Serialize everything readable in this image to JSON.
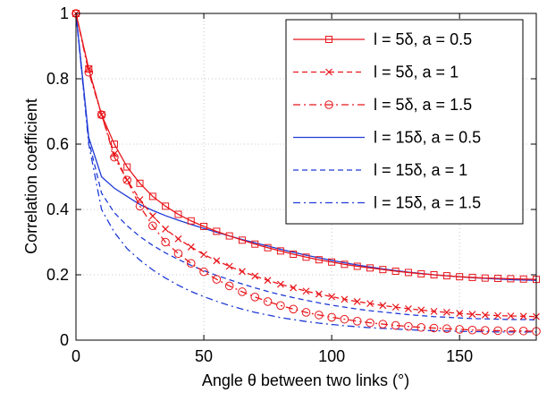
{
  "chart_data": {
    "type": "line",
    "xlabel": "Angle θ between two links (°)",
    "ylabel": "Correlation coefficient",
    "xlim": [
      0,
      180
    ],
    "ylim": [
      0,
      1
    ],
    "xticks": [
      "0",
      "50",
      "100",
      "150"
    ],
    "yticks": [
      "0",
      "0.2",
      "0.4",
      "0.6",
      "0.8",
      "1"
    ],
    "grid": true,
    "legend_position": "top-right",
    "colors": {
      "red": "#e8161b",
      "blue": "#1f3bd6",
      "grid": "#c8c8c8"
    },
    "x": [
      0,
      5,
      10,
      15,
      20,
      25,
      30,
      35,
      40,
      45,
      50,
      55,
      60,
      65,
      70,
      75,
      80,
      85,
      90,
      95,
      100,
      105,
      110,
      115,
      120,
      125,
      130,
      135,
      140,
      145,
      150,
      155,
      160,
      165,
      170,
      175,
      180
    ],
    "series": [
      {
        "name": "l = 5δ, a = 0.5",
        "color": "red",
        "dash": "solid",
        "marker": "square",
        "values": [
          1.0,
          0.83,
          0.69,
          0.6,
          0.53,
          0.48,
          0.44,
          0.41,
          0.385,
          0.365,
          0.348,
          0.333,
          0.319,
          0.306,
          0.294,
          0.283,
          0.273,
          0.263,
          0.254,
          0.246,
          0.239,
          0.232,
          0.226,
          0.221,
          0.216,
          0.211,
          0.207,
          0.203,
          0.2,
          0.197,
          0.194,
          0.192,
          0.19,
          0.189,
          0.188,
          0.187,
          0.186
        ]
      },
      {
        "name": "l = 5δ, a = 1",
        "color": "red",
        "dash": "dashed",
        "marker": "x",
        "values": [
          1.0,
          0.83,
          0.69,
          0.57,
          0.49,
          0.43,
          0.38,
          0.34,
          0.31,
          0.285,
          0.262,
          0.243,
          0.226,
          0.21,
          0.196,
          0.183,
          0.171,
          0.16,
          0.15,
          0.141,
          0.133,
          0.125,
          0.118,
          0.112,
          0.106,
          0.101,
          0.096,
          0.092,
          0.088,
          0.085,
          0.082,
          0.079,
          0.077,
          0.075,
          0.074,
          0.073,
          0.072
        ]
      },
      {
        "name": "l = 5δ, a = 1.5",
        "color": "red",
        "dash": "dashdot",
        "marker": "circle",
        "values": [
          1.0,
          0.82,
          0.69,
          0.56,
          0.49,
          0.41,
          0.35,
          0.3,
          0.265,
          0.235,
          0.209,
          0.186,
          0.166,
          0.148,
          0.132,
          0.118,
          0.106,
          0.095,
          0.085,
          0.077,
          0.07,
          0.064,
          0.058,
          0.053,
          0.049,
          0.045,
          0.042,
          0.039,
          0.037,
          0.035,
          0.033,
          0.031,
          0.03,
          0.029,
          0.028,
          0.028,
          0.027
        ]
      },
      {
        "name": "l = 15δ, a = 0.5",
        "color": "blue",
        "dash": "solid",
        "marker": "none",
        "values": [
          1.0,
          0.62,
          0.5,
          0.465,
          0.44,
          0.415,
          0.397,
          0.381,
          0.367,
          0.354,
          0.342,
          0.33,
          0.319,
          0.308,
          0.298,
          0.288,
          0.278,
          0.269,
          0.26,
          0.252,
          0.244,
          0.237,
          0.23,
          0.224,
          0.218,
          0.213,
          0.208,
          0.204,
          0.2,
          0.197,
          0.194,
          0.191,
          0.189,
          0.187,
          0.185,
          0.184,
          0.183
        ]
      },
      {
        "name": "l = 15δ, a = 1",
        "color": "blue",
        "dash": "dashed",
        "marker": "none",
        "values": [
          1.0,
          0.61,
          0.45,
          0.39,
          0.35,
          0.317,
          0.29,
          0.267,
          0.247,
          0.229,
          0.213,
          0.198,
          0.185,
          0.172,
          0.16,
          0.149,
          0.139,
          0.13,
          0.122,
          0.114,
          0.107,
          0.101,
          0.095,
          0.09,
          0.086,
          0.082,
          0.078,
          0.075,
          0.072,
          0.07,
          0.068,
          0.066,
          0.065,
          0.064,
          0.063,
          0.063,
          0.062
        ]
      },
      {
        "name": "l = 15δ, a = 1.5",
        "color": "blue",
        "dash": "dashdot",
        "marker": "none",
        "values": [
          1.0,
          0.6,
          0.4,
          0.33,
          0.28,
          0.245,
          0.215,
          0.19,
          0.168,
          0.149,
          0.133,
          0.119,
          0.106,
          0.095,
          0.085,
          0.077,
          0.069,
          0.063,
          0.057,
          0.052,
          0.048,
          0.044,
          0.041,
          0.038,
          0.036,
          0.034,
          0.032,
          0.03,
          0.029,
          0.028,
          0.027,
          0.026,
          0.026,
          0.025,
          0.025,
          0.025,
          0.025
        ]
      }
    ]
  }
}
